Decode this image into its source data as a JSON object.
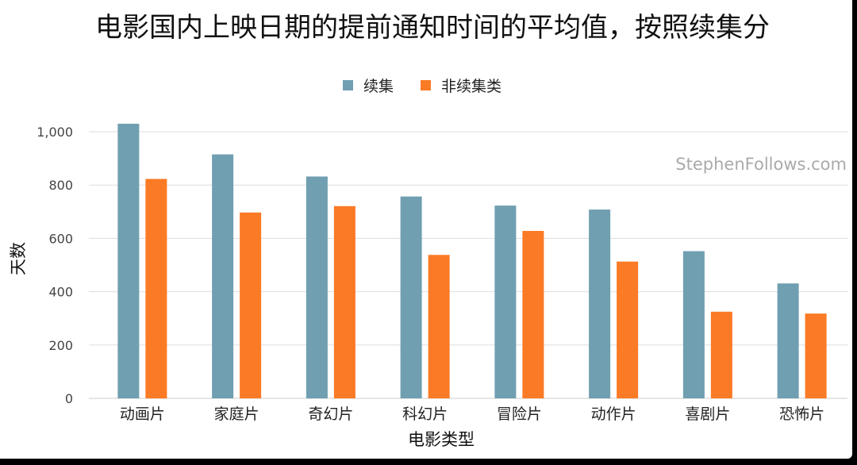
{
  "colors": {
    "series_0": "#6f9fb1",
    "series_1": "#fb7a25",
    "grid": "#dddddd",
    "background": "#ffffff",
    "frame": "#000000"
  },
  "watermark": "StephenFollows.com",
  "chart_data": {
    "type": "bar",
    "title": "电影国内上映日期的提前通知时间的平均值，按照续集分",
    "xlabel": "电影类型",
    "ylabel": "天数",
    "categories": [
      "动画片",
      "家庭片",
      "奇幻片",
      "科幻片",
      "冒险片",
      "动作片",
      "喜剧片",
      "恐怖片"
    ],
    "series": [
      {
        "name": "续集",
        "values": [
          1030,
          915,
          832,
          757,
          723,
          708,
          552,
          431
        ]
      },
      {
        "name": "非续集类",
        "values": [
          823,
          697,
          721,
          538,
          628,
          513,
          325,
          318
        ]
      }
    ],
    "ylim": [
      0,
      1000
    ],
    "yticks": [
      0,
      200,
      400,
      600,
      800,
      1000
    ],
    "ytick_labels": [
      "0",
      "200",
      "400",
      "600",
      "800",
      "1,000"
    ],
    "grid": true,
    "legend_position": "top-center"
  }
}
